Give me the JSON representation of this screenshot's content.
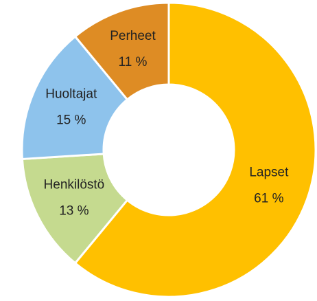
{
  "chart_data": {
    "type": "donut",
    "categories": [
      "Lapset",
      "Henkilöstö",
      "Huoltajat",
      "Perheet"
    ],
    "values": [
      61,
      13,
      15,
      11
    ],
    "value_labels": [
      "61 %",
      "13 %",
      "15 %",
      "11 %"
    ],
    "colors": [
      "#ffc000",
      "#c5da8f",
      "#8ec3ec",
      "#de8c24"
    ]
  }
}
